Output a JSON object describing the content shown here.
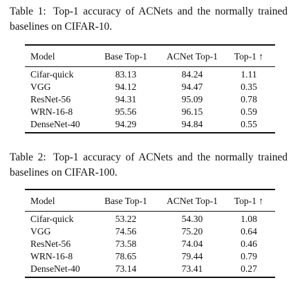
{
  "tables": [
    {
      "caption_label": "Table 1:",
      "caption_text": "Top-1 accuracy of ACNets and the normally trained baselines on CIFAR-10.",
      "headers": [
        "Model",
        "Base Top-1",
        "ACNet Top-1",
        "Top-1 ↑"
      ],
      "rows": [
        [
          "Cifar-quick",
          "83.13",
          "84.24",
          "1.11"
        ],
        [
          "VGG",
          "94.12",
          "94.47",
          "0.35"
        ],
        [
          "ResNet-56",
          "94.31",
          "95.09",
          "0.78"
        ],
        [
          "WRN-16-8",
          "95.56",
          "96.15",
          "0.59"
        ],
        [
          "DenseNet-40",
          "94.29",
          "94.84",
          "0.55"
        ]
      ]
    },
    {
      "caption_label": "Table 2:",
      "caption_text": "Top-1 accuracy of ACNets and the normally trained baselines on CIFAR-100.",
      "headers": [
        "Model",
        "Base Top-1",
        "ACNet Top-1",
        "Top-1 ↑"
      ],
      "rows": [
        [
          "Cifar-quick",
          "53.22",
          "54.30",
          "1.08"
        ],
        [
          "VGG",
          "74.56",
          "75.20",
          "0.64"
        ],
        [
          "ResNet-56",
          "73.58",
          "74.04",
          "0.46"
        ],
        [
          "WRN-16-8",
          "78.65",
          "79.44",
          "0.79"
        ],
        [
          "DenseNet-40",
          "73.14",
          "73.41",
          "0.27"
        ]
      ]
    }
  ]
}
